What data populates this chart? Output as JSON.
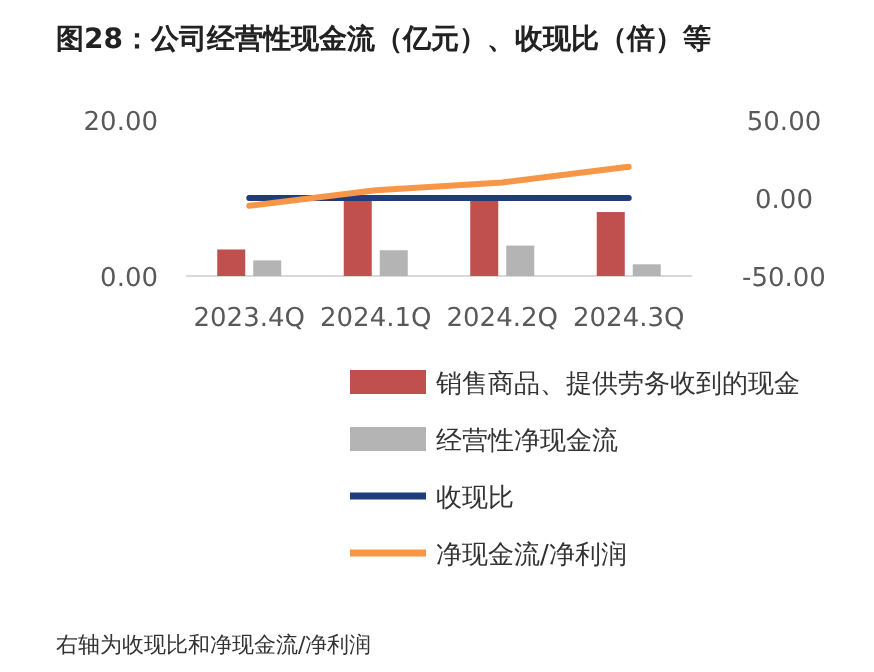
{
  "chart_data": {
    "type": "bar",
    "title": "图28：公司经营性现金流（亿元）、收现比（倍）等",
    "categories": [
      "2023.4Q",
      "2024.1Q",
      "2024.2Q",
      "2024.3Q"
    ],
    "series": [
      {
        "name": "销售商品、提供劳务收到的现金",
        "color": "#c0504d",
        "values": [
          3.4,
          10.1,
          10.1,
          8.2
        ]
      },
      {
        "name": "经营性净现金流",
        "color": "#b4b4b4",
        "values": [
          2.0,
          3.3,
          3.9,
          1.5
        ]
      },
      {
        "name": "收现比",
        "type": "line",
        "axis": "y2",
        "color": "#1f3d7a",
        "values": [
          0,
          0,
          0,
          0
        ]
      },
      {
        "name": "净现金流/净利润",
        "type": "line",
        "axis": "y2",
        "color": "#f79646",
        "values": [
          -5,
          5,
          10,
          20
        ]
      }
    ],
    "ylim": [
      0,
      20
    ],
    "yticks": [
      {
        "value": 0,
        "label": "0.00"
      },
      {
        "value": 20,
        "label": "20.00"
      }
    ],
    "y2lim": [
      -50,
      50
    ],
    "y2ticks": [
      {
        "value": -50,
        "label": "-50.00"
      },
      {
        "value": 0,
        "label": "0.00"
      },
      {
        "value": 50,
        "label": "50.00"
      }
    ],
    "legend": "bottom",
    "grid": false,
    "annotations": [
      "右轴为收现比和净现金流/净利润"
    ]
  }
}
